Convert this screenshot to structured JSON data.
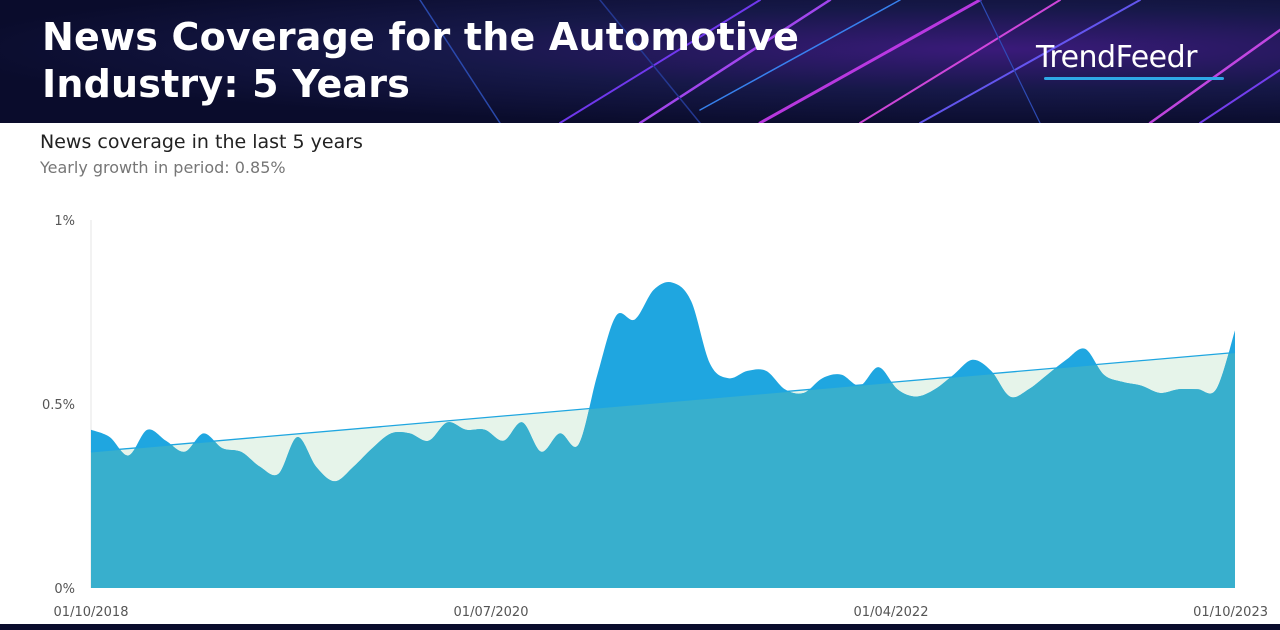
{
  "header": {
    "title": "News Coverage for the Automotive Industry: 5 Years",
    "brand": "TrendFeedr"
  },
  "chart_data": {
    "type": "area",
    "title": "News coverage in the last 5 years",
    "subtitle": "Yearly growth in period: 0.85%",
    "x_start": "01/10/2018",
    "x_end": "01/10/2023",
    "x_ticks": [
      "01/10/2018",
      "01/07/2020",
      "01/04/2022",
      "01/10/2023"
    ],
    "y_ticks": [
      "1%",
      "0.5%",
      "0%"
    ],
    "ylim": [
      0,
      1
    ],
    "series": [
      {
        "values": [
          0.43,
          0.41,
          0.36,
          0.43,
          0.4,
          0.37,
          0.42,
          0.38,
          0.37,
          0.33,
          0.31,
          0.41,
          0.33,
          0.29,
          0.33,
          0.38,
          0.42,
          0.42,
          0.4,
          0.45,
          0.43,
          0.43,
          0.4,
          0.45,
          0.37,
          0.42,
          0.39,
          0.58,
          0.74,
          0.73,
          0.81,
          0.83,
          0.78,
          0.61,
          0.57,
          0.59,
          0.59,
          0.54,
          0.53,
          0.57,
          0.58,
          0.55,
          0.6,
          0.54,
          0.52,
          0.54,
          0.58,
          0.62,
          0.59,
          0.52,
          0.54,
          0.58,
          0.62,
          0.65,
          0.58,
          0.56,
          0.55,
          0.53,
          0.54,
          0.54,
          0.54,
          0.7
        ]
      },
      {
        "type": "trend",
        "start": 0.37,
        "end": 0.64
      }
    ],
    "colors": {
      "area": "#38afcd",
      "above_trend": "#1fa6e0",
      "below_trend_fill": "#e6f4ea",
      "trend_line": "#1fa6e0",
      "axis_text": "#555555"
    }
  }
}
